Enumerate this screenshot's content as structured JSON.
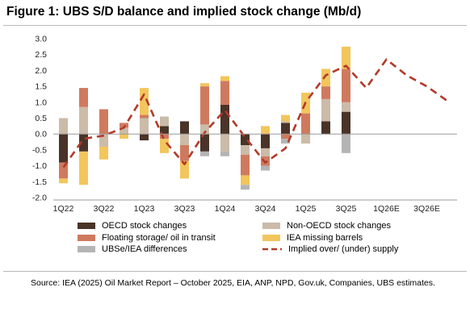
{
  "title": "Figure 1: UBS S/D balance and implied stock change (Mb/d)",
  "source": "Source: IEA (2025) Oil Market Report – October 2025, EIA, ANP, NPD, Gov.uk, Companies, UBS estimates.",
  "chart_data": {
    "type": "bar",
    "subtype": "stacked bar with line overlay",
    "title": "Figure 1: UBS S/D balance and implied stock change (Mb/d)",
    "xlabel": "",
    "ylabel": "",
    "ylim": [
      -2.0,
      3.0
    ],
    "y_ticks": [
      "3.0",
      "2.5",
      "2.0",
      "1.5",
      "1.0",
      "0.5",
      "0.0",
      "-0.5",
      "-1.0",
      "-1.5",
      "-2.0"
    ],
    "x_tick_labels": [
      "1Q22",
      "3Q22",
      "1Q23",
      "3Q23",
      "1Q24",
      "3Q24",
      "1Q25",
      "3Q25",
      "1Q26E",
      "3Q26E"
    ],
    "categories": [
      "1Q22",
      "2Q22",
      "3Q22",
      "4Q22",
      "1Q23",
      "2Q23",
      "3Q23",
      "4Q23",
      "1Q24",
      "2Q24",
      "3Q24",
      "4Q24",
      "1Q25",
      "2Q25",
      "3Q25",
      "4Q25E",
      "1Q26E",
      "2Q26E",
      "3Q26E",
      "4Q26E"
    ],
    "series": [
      {
        "name": "OECD stock changes",
        "color": "#4a3328",
        "values": [
          -0.9,
          -0.55,
          0,
          0,
          -0.2,
          0.25,
          0.4,
          -0.55,
          0.92,
          -0.35,
          -0.45,
          0.35,
          0,
          0.4,
          0.7,
          null,
          null,
          null,
          null,
          null
        ]
      },
      {
        "name": "Non-OECD stock changes",
        "color": "#cbbba8",
        "values": [
          0.5,
          0.85,
          -0.4,
          0.2,
          0.5,
          0.3,
          -0.35,
          0.3,
          -0.55,
          -0.3,
          -0.25,
          0.05,
          -0.3,
          0.7,
          0.3,
          null,
          null,
          null,
          null,
          null
        ]
      },
      {
        "name": "Floating storage/ oil in transit",
        "color": "#cf7a5f",
        "values": [
          -0.5,
          0.6,
          0.78,
          0.15,
          0.1,
          -0.15,
          -0.5,
          1.2,
          0.75,
          -0.65,
          -0.3,
          -0.15,
          0.65,
          0.4,
          1.05,
          null,
          null,
          null,
          null,
          null
        ]
      },
      {
        "name": "IEA missing barrels",
        "color": "#f2c65c",
        "values": [
          -0.15,
          -1.05,
          -0.4,
          -0.15,
          0.85,
          -0.45,
          -0.55,
          0.1,
          0.15,
          -0.3,
          0.25,
          0.2,
          0.65,
          0.55,
          0.7,
          null,
          null,
          null,
          null,
          null
        ]
      },
      {
        "name": "UBSe/IEA differences",
        "color": "#b4b4b4",
        "values": [
          0,
          0,
          0,
          0,
          0,
          0,
          0,
          -0.15,
          -0.15,
          -0.15,
          -0.15,
          -0.15,
          0,
          0,
          -0.6,
          null,
          null,
          null,
          null,
          null
        ]
      },
      {
        "name": "Implied over/ (under) supply",
        "color": "#b23a2a",
        "style": "dashed-line",
        "values": [
          -1.05,
          -0.15,
          -0.05,
          0.2,
          1.25,
          -0.2,
          -0.95,
          0.05,
          0.75,
          -0.1,
          -0.9,
          -0.45,
          1.0,
          1.85,
          2.15,
          1.45,
          2.35,
          1.85,
          1.5,
          1.05
        ]
      }
    ],
    "legend": {
      "placement": "bottom",
      "entries": [
        "OECD stock changes",
        "Non-OECD stock changes",
        "Floating storage/ oil in transit",
        "IEA missing barrels",
        "UBSe/IEA differences",
        "Implied over/ (under) supply"
      ]
    },
    "grid": false
  }
}
